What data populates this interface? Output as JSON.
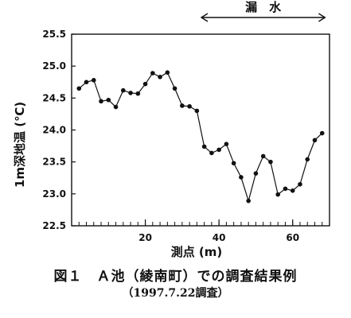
{
  "chart_data": {
    "type": "line",
    "x": [
      2,
      4,
      6,
      8,
      10,
      12,
      14,
      16,
      18,
      20,
      22,
      24,
      26,
      28,
      30,
      32,
      34,
      36,
      38,
      40,
      42,
      44,
      46,
      48,
      50,
      52,
      54,
      56,
      58,
      60,
      62,
      64,
      66,
      68
    ],
    "values": [
      24.65,
      24.75,
      24.78,
      24.45,
      24.47,
      24.36,
      24.62,
      24.58,
      24.57,
      24.72,
      24.89,
      24.83,
      24.9,
      24.65,
      24.38,
      24.37,
      24.3,
      23.74,
      23.64,
      23.69,
      23.78,
      23.48,
      23.26,
      22.89,
      23.32,
      23.59,
      23.5,
      22.99,
      23.08,
      23.05,
      23.15,
      23.54,
      23.84,
      23.95
    ],
    "ylabel": "1m深地温 (℃)",
    "xlabel": "測点 (m)",
    "xlim": [
      0,
      70
    ],
    "ylim": [
      22.5,
      25.5
    ],
    "xticks": [
      20,
      40,
      60
    ],
    "yticks": [
      "22.5",
      "23.0",
      "23.5",
      "24.0",
      "24.5",
      "25.0",
      "25.5"
    ],
    "grid": false,
    "annotation": {
      "label": "漏　水",
      "x_range": [
        35,
        69
      ]
    }
  },
  "caption": {
    "title": "図１　Ａ池（綾南町）での調査結果例",
    "subtitle": "（1997.7.22調査）"
  }
}
